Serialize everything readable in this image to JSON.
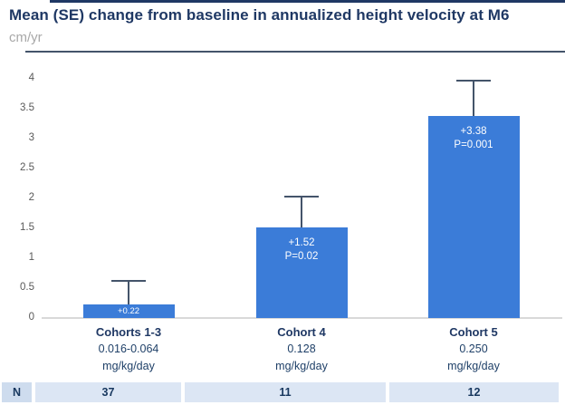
{
  "header": {
    "title": "Mean (SE) change from baseline in annualized height velocity at M6",
    "unit": "cm/yr"
  },
  "chart_data": {
    "type": "bar",
    "title": "Mean (SE) change from baseline in annualized height velocity at M6",
    "ylabel": "cm/yr",
    "xlabel": "",
    "ylim": [
      0,
      4
    ],
    "ytick_step": 0.5,
    "ytick_labels": [
      "0",
      "0.5",
      "1",
      "1.5",
      "2",
      "2.5",
      "3",
      "3.5",
      "4"
    ],
    "grid": false,
    "legend": false,
    "categories": [
      {
        "name": "Cohorts 1-3",
        "dose": "0.016-0.064",
        "dose_unit": "mg/kg/day"
      },
      {
        "name": "Cohort 4",
        "dose": "0.128",
        "dose_unit": "mg/kg/day"
      },
      {
        "name": "Cohort 5",
        "dose": "0.250",
        "dose_unit": "mg/kg/day"
      }
    ],
    "values": [
      0.22,
      1.52,
      3.38
    ],
    "error_bar_tops": [
      0.64,
      2.05,
      3.98
    ],
    "bar_labels": [
      [
        "+0.22"
      ],
      [
        "+1.52",
        "P=0.02"
      ],
      [
        "+3.38",
        "P=0.001"
      ]
    ],
    "n_values": [
      37,
      11,
      12
    ]
  },
  "n_row": {
    "label": "N",
    "values": [
      "37",
      "11",
      "12"
    ]
  },
  "colors": {
    "bar_fill": "#3B7CD8",
    "error_bar": "#44546A",
    "title_navy": "#1F3864",
    "category_navy": "#1F4068",
    "subtitle_gray": "#A8A8A8",
    "tick_gray": "#595959",
    "baseline_gray": "#D9D9D9",
    "divider": "#44546A",
    "top_rule": "#1F3864",
    "n_header_bg": "#CEDCEE",
    "n_cell_bg": "#DCE6F4",
    "n_text": "#17375E"
  }
}
